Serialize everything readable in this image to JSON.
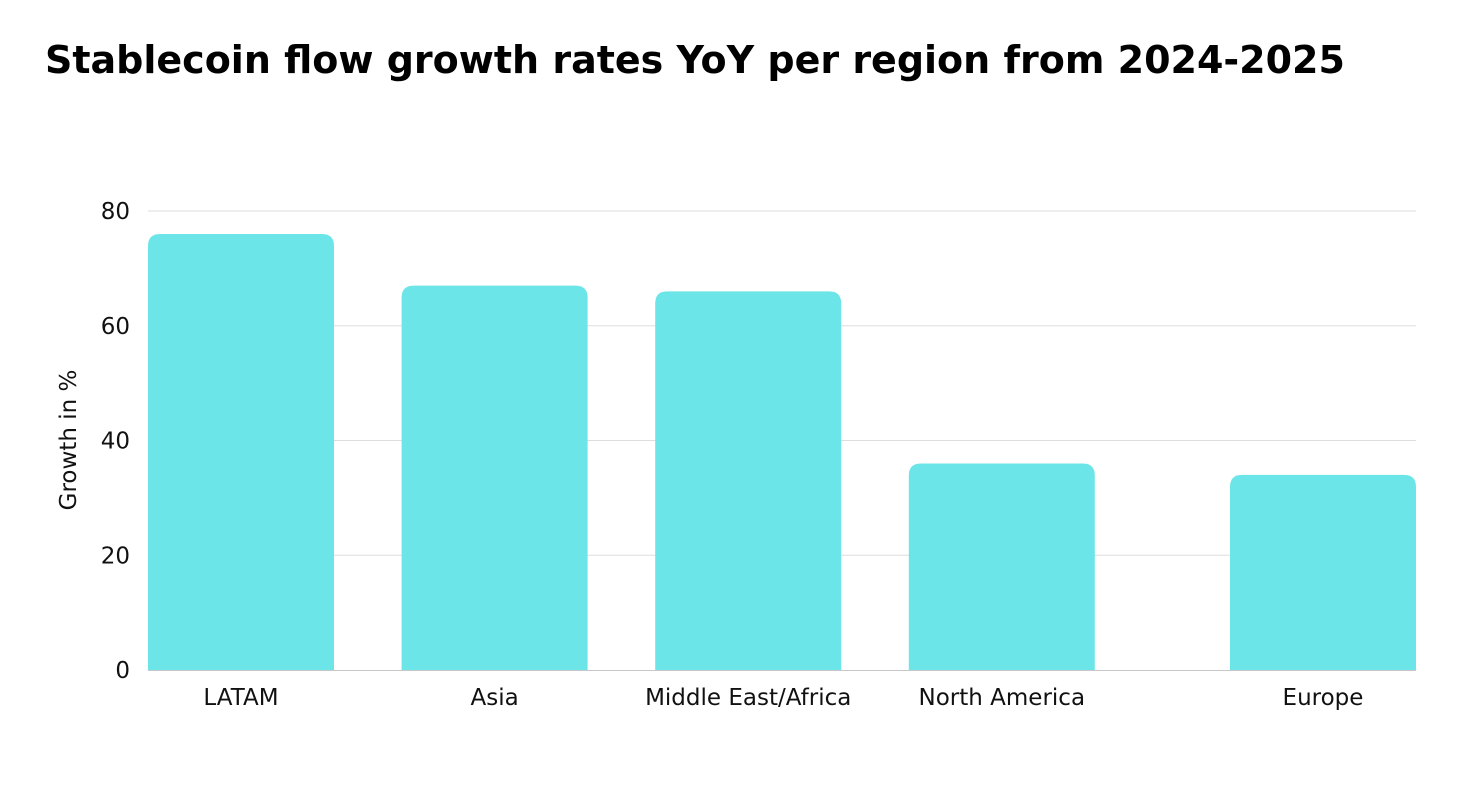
{
  "chart_data": {
    "type": "bar",
    "title": "Stablecoin flow growth rates YoY per region from 2024-2025",
    "xlabel": "",
    "ylabel": "Growth in %",
    "categories": [
      "LATAM",
      "Asia",
      "Middle East/Africa",
      "North America",
      "Europe"
    ],
    "values": [
      76,
      67,
      66,
      36,
      34
    ],
    "ylim": [
      0,
      80
    ],
    "yticks": [
      0,
      20,
      40,
      60,
      80
    ],
    "grid": true,
    "legend": "none",
    "colors": {
      "bar": "#6ce5e8",
      "grid": "#dddddd",
      "axis": "#c8c8c8",
      "text": "#111111"
    }
  }
}
